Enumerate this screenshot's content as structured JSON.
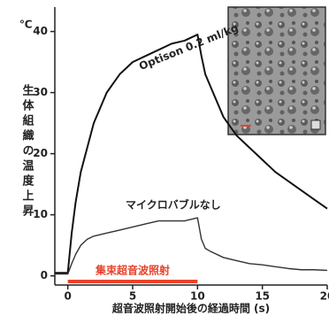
{
  "chart_data": {
    "type": "line",
    "unit": "℃",
    "ylabel": "生体組織の温度上昇",
    "xlabel": "超音波照射開始後の経過時間 (s)",
    "x": [
      -1,
      0,
      0.3,
      0.6,
      1,
      1.5,
      2,
      3,
      4,
      5,
      6,
      7,
      8,
      9,
      10,
      10.3,
      10.6,
      11,
      12,
      13,
      14,
      15,
      16,
      17,
      18,
      19,
      20
    ],
    "series": [
      {
        "name": "Optison 0.2 ml/kg",
        "color": "#111111",
        "values": [
          0.5,
          0.5,
          7,
          12,
          17,
          21,
          25,
          30,
          33,
          35,
          36,
          37,
          38,
          38.5,
          39.5,
          36,
          33,
          31,
          26,
          23,
          21,
          19,
          17,
          15.5,
          14,
          12.5,
          11
        ]
      },
      {
        "name": "マイクロバブルなし",
        "color": "#333333",
        "values": [
          0.3,
          0.3,
          2,
          3.5,
          5,
          6,
          6.5,
          7,
          7.5,
          8,
          8.5,
          9,
          9,
          9,
          9.5,
          6,
          4.5,
          4,
          3,
          2.5,
          2,
          1.8,
          1.5,
          1.2,
          1,
          1,
          0.9
        ]
      }
    ],
    "stimulus": {
      "label": "集束超音波照射",
      "start": 0,
      "end": 10,
      "color": "#e8432b"
    },
    "xlim": [
      -1,
      20
    ],
    "ylim": [
      -1.5,
      44
    ],
    "xticks": [
      0,
      5,
      10,
      15,
      20
    ],
    "yticks": [
      0,
      10,
      20,
      30,
      40
    ]
  }
}
